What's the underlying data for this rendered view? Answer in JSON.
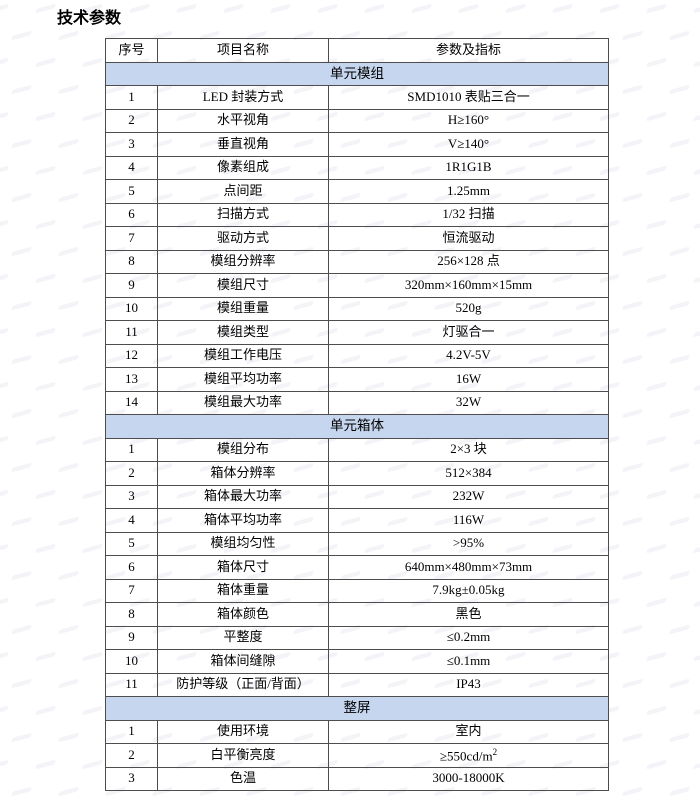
{
  "page": {
    "title": "技术参数"
  },
  "colors": {
    "section_header_bg": "#c6d6ee",
    "table_border": "#4d4d4d",
    "text": "#000000"
  },
  "table": {
    "headers": [
      "序号",
      "项目名称",
      "参数及指标"
    ],
    "sections": [
      {
        "name": "单元模组",
        "rows": [
          [
            "1",
            "LED 封装方式",
            "SMD1010 表贴三合一"
          ],
          [
            "2",
            "水平视角",
            "H≥160°"
          ],
          [
            "3",
            "垂直视角",
            "V≥140°"
          ],
          [
            "4",
            "像素组成",
            "1R1G1B"
          ],
          [
            "5",
            "点间距",
            "1.25mm"
          ],
          [
            "6",
            "扫描方式",
            "1/32 扫描"
          ],
          [
            "7",
            "驱动方式",
            "恒流驱动"
          ],
          [
            "8",
            "模组分辨率",
            "256×128 点"
          ],
          [
            "9",
            "模组尺寸",
            "320mm×160mm×15mm"
          ],
          [
            "10",
            "模组重量",
            "520g"
          ],
          [
            "11",
            "模组类型",
            "灯驱合一"
          ],
          [
            "12",
            "模组工作电压",
            "4.2V-5V"
          ],
          [
            "13",
            "模组平均功率",
            "16W"
          ],
          [
            "14",
            "模组最大功率",
            "32W"
          ]
        ]
      },
      {
        "name": "单元箱体",
        "rows": [
          [
            "1",
            "模组分布",
            "2×3 块"
          ],
          [
            "2",
            "箱体分辨率",
            "512×384"
          ],
          [
            "3",
            "箱体最大功率",
            "232W"
          ],
          [
            "4",
            "箱体平均功率",
            "116W"
          ],
          [
            "5",
            "模组均匀性",
            ">95%"
          ],
          [
            "6",
            "箱体尺寸",
            "640mm×480mm×73mm"
          ],
          [
            "7",
            "箱体重量",
            "7.9kg±0.05kg"
          ],
          [
            "8",
            "箱体颜色",
            "黑色"
          ],
          [
            "9",
            "平整度",
            "≤0.2mm"
          ],
          [
            "10",
            "箱体间缝隙",
            "≤0.1mm"
          ],
          [
            "11",
            "防护等级（正面/背面）",
            "IP43"
          ]
        ]
      },
      {
        "name": "整屏",
        "rows": [
          [
            "1",
            "使用环境",
            "室内"
          ],
          [
            "2",
            "白平衡亮度",
            "≥550cd/m²"
          ],
          [
            "3",
            "色温",
            "3000-18000K"
          ]
        ]
      }
    ]
  }
}
